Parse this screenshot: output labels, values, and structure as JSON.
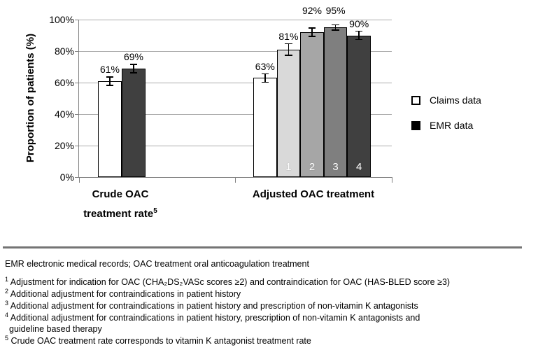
{
  "chart_data": {
    "type": "bar",
    "title": "",
    "ylabel": "Proportion of patients (%)",
    "xlabel": "",
    "ylim": [
      0,
      100
    ],
    "grid": true,
    "ytick_values": [
      0,
      20,
      40,
      60,
      80,
      100
    ],
    "ytick_labels": [
      "0%",
      "20%",
      "40%",
      "60%",
      "80%",
      "100%"
    ],
    "legend_position": "right",
    "legend": [
      {
        "label": "Claims data",
        "fill": "#ffffff"
      },
      {
        "label": "EMR data",
        "fill": "#000000"
      }
    ],
    "groups": [
      {
        "label_lines": [
          "Crude OAC",
          "treatment rate"
        ],
        "label_sup": "5",
        "bars": [
          {
            "series": "Claims data",
            "value": 61,
            "label": "61%",
            "error": 3,
            "fill": "#ffffff",
            "bar_number": ""
          },
          {
            "series": "EMR data",
            "value": 69,
            "label": "69%",
            "error": 3,
            "fill": "#404040",
            "bar_number": ""
          }
        ]
      },
      {
        "label_lines": [
          "Adjusted OAC treatment"
        ],
        "label_sup": "",
        "bars": [
          {
            "series": "Claims data",
            "value": 63,
            "label": "63%",
            "error": 3,
            "fill": "#ffffff",
            "bar_number": ""
          },
          {
            "series": "EMR data adjustment 1",
            "value": 81,
            "label": "81%",
            "error": 4,
            "fill": "#d9d9d9",
            "bar_number": "1"
          },
          {
            "series": "EMR data adjustment 2",
            "value": 92,
            "label": "92%",
            "error": 3,
            "fill": "#a6a6a6",
            "bar_number": "2"
          },
          {
            "series": "EMR data adjustment 3",
            "value": 95,
            "label": "95%",
            "error": 2,
            "fill": "#7f7f7f",
            "bar_number": "3"
          },
          {
            "series": "EMR data adjustment 4",
            "value": 90,
            "label": "90%",
            "error": 3,
            "fill": "#404040",
            "bar_number": "4"
          }
        ]
      }
    ]
  },
  "footer": {
    "abbreviations": "EMR electronic medical records; OAC treatment oral anticoagulation treatment",
    "footnotes": [
      {
        "marker": "1",
        "lines": [
          "Adjustment for indication for OAC (CHA₂DS₂VASc scores ≥2) and contraindication for OAC (HAS-BLED score ≥3)"
        ]
      },
      {
        "marker": "2",
        "lines": [
          "Additional adjustment for contraindications in patient history"
        ]
      },
      {
        "marker": "3",
        "lines": [
          "Additional adjustment for contraindications in patient history and prescription of non-vitamin K antagonists"
        ]
      },
      {
        "marker": "4",
        "lines": [
          "Additional adjustment for contraindications in patient history, prescription of non-vitamin K antagonists and",
          "guideline based therapy"
        ]
      },
      {
        "marker": "5",
        "lines": [
          "Crude OAC treatment rate corresponds to vitamin K antagonist treatment rate"
        ]
      }
    ]
  }
}
